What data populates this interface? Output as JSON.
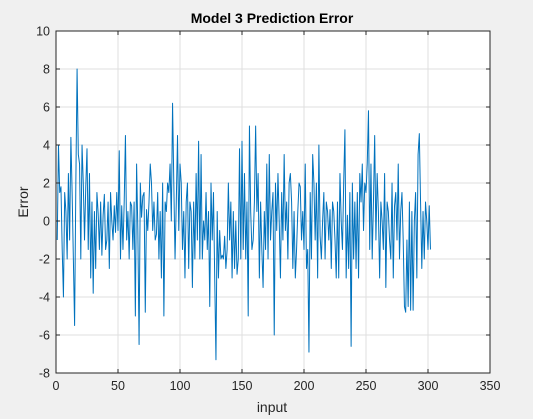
{
  "colors": {
    "figure_bg": "#f0f0f0",
    "axes_bg": "#ffffff",
    "grid": "#dfdfdf",
    "axis": "#262626",
    "line": "#0072bd"
  },
  "chart_data": {
    "type": "line",
    "title": "Model 3 Prediction Error",
    "xlabel": "input",
    "ylabel": "Error",
    "xlim": [
      0,
      350
    ],
    "ylim": [
      -8,
      10
    ],
    "xticks": [
      0,
      50,
      100,
      150,
      200,
      250,
      300,
      350
    ],
    "yticks": [
      -8,
      -6,
      -4,
      -2,
      0,
      2,
      4,
      6,
      8,
      10
    ],
    "grid": true,
    "series": [
      {
        "x_start": 1,
        "x_step": 1,
        "values": [
          -1.0,
          4.0,
          1.5,
          1.8,
          -1.5,
          -4.0,
          1.5,
          0.5,
          -2.0,
          2.5,
          -1.0,
          4.4,
          1.5,
          -2.0,
          -5.5,
          2.0,
          8.0,
          3.5,
          3.0,
          -2.0,
          4.0,
          2.0,
          -1.0,
          1.8,
          3.8,
          -1.5,
          2.5,
          -3.0,
          1.0,
          -3.8,
          0.5,
          -2.5,
          1.5,
          0.4,
          -1.5,
          1.0,
          -1.8,
          0.3,
          1.4,
          -1.5,
          -1.0,
          1.0,
          -2.5,
          1.5,
          0.0,
          -1.0,
          0.8,
          -0.6,
          1.5,
          -0.5,
          3.7,
          -2.0,
          0.8,
          -1.5,
          1.0,
          4.5,
          -1.0,
          0.5,
          -2.0,
          1.0,
          0.8,
          -1.5,
          1.0,
          -5.0,
          3.0,
          -0.5,
          -6.5,
          2.0,
          0.2,
          1.3,
          1.5,
          -4.8,
          0.6,
          -0.5,
          1.0,
          3.0,
          2.0,
          -0.5,
          1.0,
          -1.0,
          -0.7,
          1.5,
          -2.0,
          0.5,
          -3.0,
          2.0,
          -5.0,
          1.0,
          0.5,
          2.0,
          1.5,
          3.0,
          0.0,
          6.2,
          2.0,
          -2.0,
          1.0,
          4.5,
          -0.5,
          3.0,
          2.0,
          -1.5,
          0.5,
          -3.0,
          1.0,
          2.0,
          -2.5,
          1.0,
          0.5,
          -3.5,
          1.0,
          -2.0,
          2.5,
          -1.0,
          4.2,
          -2.0,
          3.5,
          -2.0,
          0.0,
          -1.0,
          1.5,
          -1.5,
          0.5,
          -4.5,
          2.0,
          -1.0,
          1.5,
          -3.0,
          -7.3,
          0.5,
          -3.0,
          -0.5,
          -2.0,
          -1.8,
          -2.0,
          -0.8,
          -2.5,
          -1.5,
          2.0,
          -1.0,
          1.0,
          -3.0,
          0.5,
          -2.5,
          0.0,
          -2.8,
          -2.0,
          3.8,
          -2.0,
          4.2,
          -1.5,
          2.5,
          -2.0,
          1.0,
          -5.0,
          5.0,
          0.5,
          -1.5,
          -1.0,
          1.0,
          5.0,
          0.5,
          2.5,
          -3.0,
          1.0,
          -1.5,
          -3.5,
          0.5,
          -1.5,
          3.0,
          -2.0,
          3.5,
          -1.0,
          0.5,
          1.5,
          -6.0,
          2.0,
          -0.5,
          2.5,
          0.0,
          -3.0,
          1.5,
          -1.0,
          3.5,
          -0.5,
          1.0,
          -2.0,
          2.0,
          2.5,
          1.0,
          -2.5,
          0.5,
          -3.0,
          -1.5,
          0.5,
          2.0,
          1.8,
          -1.0,
          0.5,
          -1.5,
          3.0,
          -2.5,
          -1.5,
          -6.9,
          1.5,
          -2.0,
          3.5,
          2.0,
          -1.0,
          2.0,
          -3.0,
          4.0,
          -0.8,
          -2.0,
          0.0,
          1.5,
          -2.0,
          1.0,
          0.5,
          -1.0,
          0.6,
          -2.5,
          1.0,
          0.5,
          -1.0,
          -3.0,
          1.0,
          -3.0,
          2.5,
          0.0,
          -1.5,
          2.0,
          4.8,
          -3.0,
          0.3,
          -2.5,
          1.5,
          -6.6,
          2.0,
          -2.0,
          1.0,
          -2.5,
          1.5,
          -3.0,
          2.5,
          1.0,
          3.0,
          -0.5,
          2.0,
          1.5,
          3.0,
          5.8,
          -1.5,
          3.0,
          -2.0,
          1.0,
          4.5,
          -1.0,
          2.5,
          0.5,
          -3.0,
          1.0,
          0.0,
          -1.5,
          2.5,
          -3.5,
          1.0,
          0.5,
          -1.0,
          -2.0,
          2.0,
          -3.0,
          0.8,
          1.5,
          -1.0,
          3.0,
          -2.0,
          0.5,
          1.5,
          -1.0,
          -4.5,
          -4.8,
          -1.0,
          -4.5,
          1.0,
          -4.7,
          0.5,
          -4.7,
          0.0,
          1.5,
          -3.0,
          3.5,
          4.6,
          1.0,
          -2.5,
          0.5,
          -2.0,
          1.0,
          0.0,
          -1.5,
          0.8,
          -1.5
        ]
      }
    ]
  }
}
